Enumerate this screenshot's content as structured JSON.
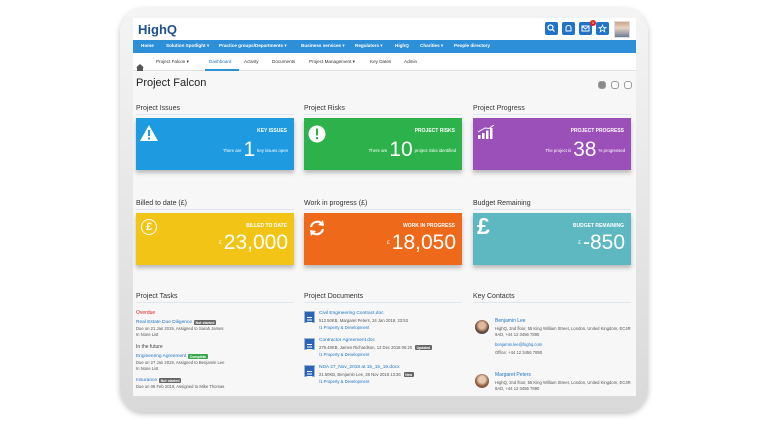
{
  "header": {
    "logo": "HighQ",
    "notification_count": "1"
  },
  "nav": [
    "Home",
    "Solution Spotlight ▾",
    "Practice groups/Departments ▾",
    "Business services ▾",
    "Regulators ▾",
    "HighQ",
    "Charities ▾",
    "People directory"
  ],
  "subnav": {
    "project": "Project Falcon ▾",
    "tabs": [
      "Dashboard",
      "Activity",
      "Documents",
      "Project Management ▾",
      "Key Dates",
      "Admin"
    ]
  },
  "page_title": "Project Falcon",
  "tiles": [
    {
      "heading": "Project Issues",
      "label": "KEY ISSUES",
      "prefix": "There are",
      "value": "1",
      "suffix": "key issues open"
    },
    {
      "heading": "Project Risks",
      "label": "PROJECT RISKS",
      "prefix": "There are",
      "value": "10",
      "suffix": "project risks identified"
    },
    {
      "heading": "Project Progress",
      "label": "PROJECT PROGRESS",
      "prefix": "The project is",
      "value": "38",
      "suffix": "% progressed"
    }
  ],
  "money_tiles": [
    {
      "heading": "Billed to date (£)",
      "label": "BILLED TO DATE",
      "icon": "£",
      "currency": "£",
      "value": "23,000"
    },
    {
      "heading": "Work in progress (£)",
      "label": "WORK IN PROGRESS",
      "currency": "£",
      "value": "18,050"
    },
    {
      "heading": "Budget Remaining",
      "label": "BUDGET REMAINING",
      "icon": "£",
      "currency": "£",
      "value": "-850"
    }
  ],
  "tasks": {
    "heading": "Project Tasks",
    "groups": [
      {
        "label": "Overdue",
        "items": [
          {
            "title": "Real Estate Due Diligence",
            "status": "Not started",
            "due": "Due on 21 Jan 2019, Assigned to Sarah James",
            "list": "In None List"
          }
        ]
      },
      {
        "label": "In the future",
        "items": [
          {
            "title": "Engineering Agreement",
            "status": "Complete",
            "due": "Due on 27 Jan 2019, Assigned to Benjamin Lee",
            "list": "In None List"
          },
          {
            "title": "Insurance",
            "status": "Not started",
            "due": "Due on 06 Feb 2019, Assigned to Mike Thomas"
          }
        ]
      }
    ]
  },
  "documents": {
    "heading": "Project Documents",
    "items": [
      {
        "name": "Civil Engineering Contract.doc",
        "meta": "512.50KB, Margaret Peters, 24 Jan 2019, 23:53",
        "folder": "/1 Property & Development"
      },
      {
        "name": "Contractor Agreement.doc",
        "meta": "279.48KB, James Richardson, 13 Dec 2018 06:20",
        "badge": "Updated",
        "folder": "/1 Property & Development"
      },
      {
        "name": "NDA 27_Nov_2018 at 15_15_19.docx",
        "meta": "21.50KB, Benjamin Lee, 28 Nov 2018 13:36",
        "badge": "New",
        "folder": "/1 Property & Development"
      }
    ]
  },
  "contacts": {
    "heading": "Key Contacts",
    "items": [
      {
        "name": "Benjamin Lee",
        "address": "HighQ, 2nd floor, 55 King William Street, London, United Kingdom, EC4R 9AD, +44 12 3456 7890",
        "email": "benjamin.lee@highq.com",
        "office": "Office: +44 12 3456 7890"
      },
      {
        "name": "Margaret Peters",
        "address": "HighQ, 2nd floor, 55 King William Street, London, United Kingdom, EC4R 9AD, +44 12 3456 7890"
      }
    ]
  }
}
